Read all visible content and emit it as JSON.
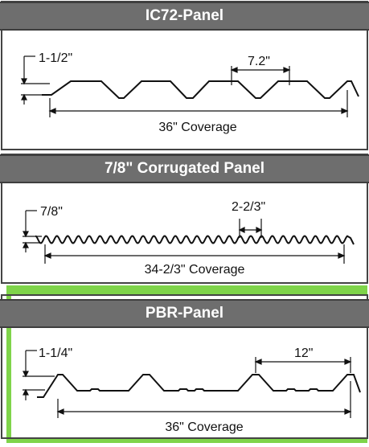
{
  "panels": [
    {
      "title": "IC72-Panel",
      "height_label": "1-1/2\"",
      "spacing_label": "7.2\"",
      "coverage_label": "36\" Coverage"
    },
    {
      "title": "7/8\" Corrugated Panel",
      "height_label": "7/8\"",
      "spacing_label": "2-2/3\"",
      "coverage_label": "34-2/3\" Coverage"
    },
    {
      "title": "PBR-Panel",
      "height_label": "1-1/4\"",
      "spacing_label": "12\"",
      "coverage_label": "36\" Coverage"
    }
  ],
  "colors": {
    "band": "#6e6e6e",
    "highlight": "#7fd44a",
    "outline": "#444444"
  }
}
